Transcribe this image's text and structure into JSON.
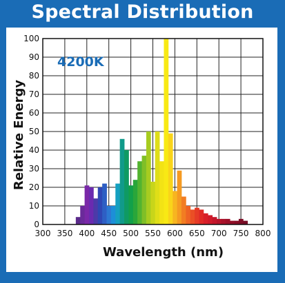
{
  "chart_data": {
    "type": "bar",
    "title": "Spectral Distribution",
    "annotation": "4200K",
    "xlabel": "Wavelength (nm)",
    "ylabel": "Relative Energy",
    "xlim": [
      300,
      800
    ],
    "ylim": [
      0,
      100
    ],
    "xticks": [
      300,
      350,
      400,
      450,
      500,
      550,
      600,
      650,
      700,
      750,
      800
    ],
    "yticks": [
      0,
      10,
      20,
      30,
      40,
      50,
      60,
      70,
      80,
      90,
      100
    ],
    "grid": true,
    "bar_width_nm": 10,
    "x": [
      380,
      390,
      400,
      410,
      420,
      430,
      440,
      450,
      460,
      470,
      480,
      490,
      500,
      510,
      520,
      530,
      540,
      550,
      560,
      570,
      580,
      590,
      600,
      610,
      620,
      630,
      640,
      650,
      660,
      670,
      680,
      690,
      700,
      710,
      720,
      730,
      740,
      750,
      760
    ],
    "values": [
      4,
      10,
      21,
      20,
      14,
      20,
      22,
      10,
      10,
      22,
      46,
      40,
      21,
      24,
      34,
      37,
      50,
      23,
      50,
      34,
      100,
      49,
      18,
      29,
      15,
      10,
      8,
      9,
      8,
      6,
      5,
      4,
      3,
      3,
      3,
      2,
      2,
      3,
      2
    ],
    "colors": [
      "#5a2a8a",
      "#6a2a9a",
      "#7a28a8",
      "#6a2ab0",
      "#4c3aa8",
      "#2f47b4",
      "#2e5fc4",
      "#2d78d2",
      "#1d8fd8",
      "#15a0c0",
      "#119a8a",
      "#0f9a63",
      "#12a04a",
      "#2aa63a",
      "#52b330",
      "#7fbf27",
      "#a7cc20",
      "#c8d51a",
      "#dfde18",
      "#f2e315",
      "#f8e914",
      "#f9d41a",
      "#f7b520",
      "#f59a22",
      "#f27d22",
      "#ee6424",
      "#ea4f25",
      "#e63b26",
      "#e02a27",
      "#d81f29",
      "#cf1a2a",
      "#c3162a",
      "#b6142a",
      "#a9122a",
      "#9d1029",
      "#920f28",
      "#880e27",
      "#7e0d26",
      "#750c25"
    ]
  }
}
